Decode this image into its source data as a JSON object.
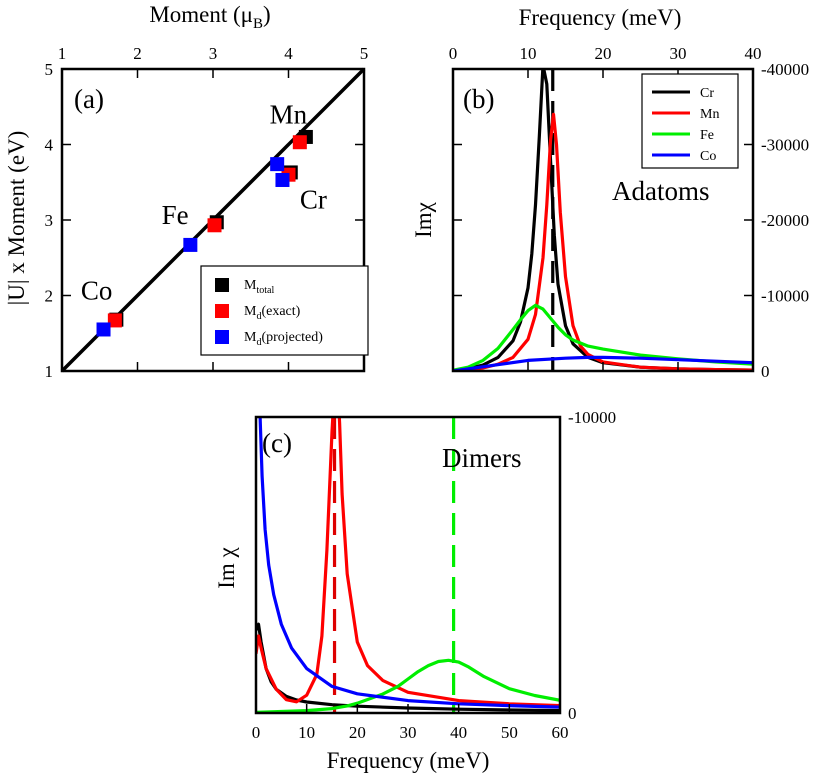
{
  "chart_data": [
    {
      "id": "a",
      "type": "scatter",
      "panel_label": "(a)",
      "xlabel": "Moment (μB)",
      "xlabel_main": "Moment (μ",
      "xlabel_sub": "B",
      "xlabel_close": ")",
      "ylabel": "|U| x Moment (eV)",
      "xlim": [
        1,
        5
      ],
      "ylim": [
        1,
        5
      ],
      "xticks": [
        1,
        2,
        3,
        4,
        5
      ],
      "yticks": [
        1,
        2,
        3,
        4,
        5
      ],
      "reference_line": {
        "x": [
          1,
          5
        ],
        "y": [
          1,
          5
        ]
      },
      "series": [
        {
          "name": "M_total",
          "legend_main": "M",
          "legend_sub": "total",
          "legend_suffix": "",
          "color": "#000000",
          "points": [
            [
              1.72,
              1.68
            ],
            [
              3.05,
              2.97
            ],
            [
              4.23,
              4.1
            ],
            [
              4.03,
              3.63
            ]
          ]
        },
        {
          "name": "M_d(exact)",
          "legend_main": "M",
          "legend_sub": "d",
          "legend_suffix": "(exact)",
          "color": "#ff0000",
          "points": [
            [
              1.7,
              1.67
            ],
            [
              3.02,
              2.93
            ],
            [
              4.15,
              4.03
            ],
            [
              4.0,
              3.6
            ]
          ]
        },
        {
          "name": "M_d(projected)",
          "legend_main": "M",
          "legend_sub": "d",
          "legend_suffix": "(projected)",
          "color": "#0000ff",
          "points": [
            [
              1.55,
              1.55
            ],
            [
              2.7,
              2.67
            ],
            [
              3.85,
              3.74
            ],
            [
              3.92,
              3.53
            ]
          ]
        }
      ],
      "annotations": [
        {
          "text": "Co",
          "x": 1.25,
          "y": 1.95
        },
        {
          "text": "Fe",
          "x": 2.32,
          "y": 2.95
        },
        {
          "text": "Mn",
          "x": 3.75,
          "y": 4.28
        },
        {
          "text": "Cr",
          "x": 4.15,
          "y": 3.15
        }
      ]
    },
    {
      "id": "b",
      "type": "line",
      "panel_label": "(b)",
      "title": "Adatoms",
      "xlabel": "Frequency (meV)",
      "ylabel": "Imχ",
      "xlim": [
        0,
        40
      ],
      "ylim": [
        0,
        -40000
      ],
      "xticks": [
        0,
        10,
        20,
        30,
        40
      ],
      "yticks": [
        0,
        -10000,
        -20000,
        -30000,
        -40000
      ],
      "ytick_labels": [
        "0",
        "-10000",
        "-20000",
        "-30000",
        "-40000"
      ],
      "series": [
        {
          "name": "Cr",
          "color": "#000000",
          "x": [
            0,
            2,
            4,
            6,
            8,
            9,
            10,
            10.5,
            11,
            11.5,
            12,
            12.5,
            13,
            13.5,
            14,
            15,
            16,
            18,
            20,
            25,
            30,
            35,
            40
          ],
          "values": [
            0,
            -300,
            -800,
            -1800,
            -4000,
            -6500,
            -11000,
            -15500,
            -22000,
            -31000,
            -40500,
            -38000,
            -28000,
            -18000,
            -11500,
            -6000,
            -3600,
            -1800,
            -1100,
            -500,
            -280,
            -180,
            -120
          ]
        },
        {
          "name": "Mn",
          "color": "#ff0000",
          "x": [
            0,
            2,
            4,
            6,
            8,
            10,
            11,
            12,
            12.5,
            13,
            13.4,
            13.8,
            14.3,
            15,
            16,
            17,
            18,
            20,
            25,
            30,
            35,
            40
          ],
          "values": [
            0,
            -150,
            -400,
            -900,
            -1800,
            -4200,
            -7500,
            -15000,
            -22000,
            -30500,
            -34000,
            -30000,
            -21000,
            -12500,
            -6000,
            -3300,
            -2200,
            -1200,
            -500,
            -280,
            -180,
            -120
          ]
        },
        {
          "name": "Fe",
          "color": "#00ee00",
          "x": [
            0,
            2,
            4,
            6,
            8,
            9,
            10,
            11,
            12,
            13,
            14,
            15,
            16,
            18,
            20,
            25,
            30,
            35,
            40
          ],
          "values": [
            -100,
            -500,
            -1400,
            -3000,
            -5500,
            -6800,
            -8000,
            -8700,
            -8200,
            -7000,
            -5800,
            -4800,
            -4100,
            -3300,
            -2900,
            -2100,
            -1600,
            -1200,
            -900
          ]
        },
        {
          "name": "Co",
          "color": "#0000ff",
          "x": [
            0,
            5,
            10,
            15,
            18,
            20,
            25,
            30,
            35,
            40
          ],
          "values": [
            0,
            -700,
            -1400,
            -1700,
            -1800,
            -1800,
            -1700,
            -1500,
            -1300,
            -1100
          ]
        }
      ],
      "vlines": [
        {
          "x": 13.3,
          "color": "#000000",
          "dashed": true
        }
      ]
    },
    {
      "id": "c",
      "type": "line",
      "panel_label": "(c)",
      "title": "Dimers",
      "xlabel": "Frequency (meV)",
      "ylabel": "Im χ",
      "xlim": [
        0,
        60
      ],
      "ylim": [
        0,
        -10000
      ],
      "xticks": [
        0,
        10,
        20,
        30,
        40,
        50,
        60
      ],
      "yticks": [
        0,
        -10000
      ],
      "ytick_labels": [
        "0",
        "-10000"
      ],
      "series": [
        {
          "name": "Cr",
          "color": "#000000",
          "x": [
            0,
            0.5,
            1,
            2,
            3,
            4,
            6,
            8,
            10,
            15,
            20,
            30,
            40,
            50,
            60
          ],
          "values": [
            -2800,
            -3000,
            -2400,
            -1500,
            -1050,
            -800,
            -560,
            -440,
            -370,
            -280,
            -230,
            -170,
            -130,
            -100,
            -80
          ]
        },
        {
          "name": "Mn",
          "color": "#ff0000",
          "x": [
            0,
            0.5,
            1,
            2,
            4,
            6,
            8,
            10,
            12,
            13,
            14,
            15,
            15.8,
            16.5,
            17,
            18,
            20,
            22,
            25,
            30,
            40,
            50,
            60
          ],
          "values": [
            -2000,
            -2600,
            -2200,
            -1500,
            -800,
            -450,
            -380,
            -600,
            -1300,
            -2600,
            -5500,
            -9500,
            -12000,
            -9800,
            -7400,
            -4700,
            -2400,
            -1600,
            -1100,
            -700,
            -420,
            -310,
            -250
          ]
        },
        {
          "name": "Fe",
          "color": "#00ee00",
          "x": [
            0,
            10,
            15,
            18,
            20,
            25,
            28,
            30,
            32,
            34,
            36,
            38,
            40,
            42,
            45,
            50,
            55,
            60
          ],
          "values": [
            -20,
            -80,
            -150,
            -240,
            -330,
            -640,
            -900,
            -1150,
            -1400,
            -1600,
            -1740,
            -1780,
            -1720,
            -1550,
            -1230,
            -820,
            -590,
            -430
          ]
        },
        {
          "name": "Co",
          "color": "#0000ff",
          "x": [
            0.5,
            0.8,
            1.2,
            1.8,
            2.5,
            3.5,
            5,
            7,
            10,
            15,
            20,
            30,
            40,
            50,
            60
          ],
          "values": [
            -11500,
            -10000,
            -8000,
            -6200,
            -5000,
            -4000,
            -3000,
            -2200,
            -1500,
            -900,
            -650,
            -420,
            -310,
            -250,
            -200
          ]
        }
      ],
      "vlines": [
        {
          "x": 15.5,
          "color": "#dd0000",
          "dashed": true
        },
        {
          "x": 39,
          "color": "#00ee00",
          "dashed": true
        }
      ]
    }
  ]
}
